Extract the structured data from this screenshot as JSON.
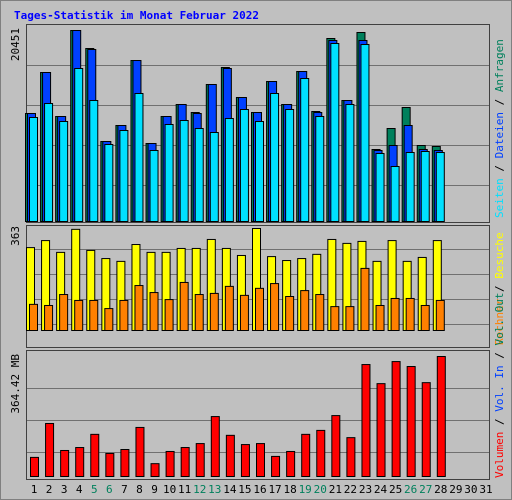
{
  "chart_data": {
    "type": "bar",
    "title": "Tages-Statistik im Monat Februar 2022",
    "legend_separator": " / ",
    "categories": [
      "1",
      "2",
      "3",
      "4",
      "5",
      "6",
      "7",
      "8",
      "9",
      "10",
      "11",
      "12",
      "13",
      "14",
      "15",
      "16",
      "17",
      "18",
      "19",
      "20",
      "21",
      "22",
      "23",
      "24",
      "25",
      "26",
      "27",
      "28",
      "29",
      "30",
      "31"
    ],
    "category_colors": [
      "#000000",
      "#000000",
      "#000000",
      "#000000",
      "#00805c",
      "#00805c",
      "#000000",
      "#000000",
      "#000000",
      "#000000",
      "#000000",
      "#00805c",
      "#00805c",
      "#000000",
      "#000000",
      "#000000",
      "#000000",
      "#000000",
      "#00805c",
      "#00805c",
      "#000000",
      "#000000",
      "#000000",
      "#000000",
      "#000000",
      "#00805c",
      "#00805c",
      "#000000",
      "#000000",
      "#000000",
      "#000000"
    ],
    "panels": [
      {
        "ylim": [
          0,
          20451
        ],
        "yticks": [
          20451
        ],
        "series": [
          {
            "name": "Anfragen",
            "color": "#00805c",
            "values": [
              11564,
              15954,
              11242,
              20451,
              18523,
              8566,
              10279,
              17238,
              8351,
              11242,
              12527,
              11671,
              14669,
              16489,
              13277,
              11671,
              14990,
              12527,
              16060,
              11778,
              19594,
              12955,
              20236,
              7709,
              9957,
              12206,
              8137,
              8030,
              null,
              null,
              null
            ]
          },
          {
            "name": "Dateien",
            "color": "#0040ff",
            "values": [
              11564,
              15954,
              11242,
              20451,
              18416,
              8566,
              10279,
              17238,
              8351,
              11242,
              12527,
              11564,
              14669,
              16382,
              13277,
              11671,
              14990,
              12527,
              16060,
              11671,
              19380,
              12955,
              19380,
              7602,
              8137,
              10279,
              7709,
              7602,
              null,
              null,
              null
            ]
          },
          {
            "name": "Seiten",
            "color": "#00e0ff",
            "values": [
              11135,
              12634,
              10707,
              16382,
              12955,
              8244,
              9743,
              13705,
              7602,
              10386,
              10814,
              9957,
              9529,
              11028,
              11992,
              10707,
              13705,
              11992,
              15311,
              11242,
              19059,
              12527,
              18951,
              7281,
              5889,
              7388,
              7495,
              7388,
              null,
              null,
              null
            ]
          }
        ]
      },
      {
        "ylim": [
          0,
          363
        ],
        "yticks": [
          363
        ],
        "series": [
          {
            "name": "Besuche",
            "color": "#ffff00",
            "values": [
              295,
              320,
              278,
              360,
              285,
              256,
              246,
              306,
              278,
              278,
              292,
              292,
              324,
              292,
              267,
              363,
              263,
              249,
              256,
              271,
              324,
              310,
              317,
              246,
              320,
              246,
              260,
              320,
              null,
              null,
              null
            ]
          },
          {
            "name": "Rechner",
            "color": "#ff8000",
            "values": [
              93,
              89,
              128,
              107,
              107,
              78,
              107,
              160,
              135,
              110,
              171,
              128,
              132,
              157,
              125,
              150,
              167,
              121,
              142,
              128,
              85,
              85,
              221,
              89,
              114,
              114,
              89,
              107,
              null,
              null,
              null
            ]
          }
        ]
      },
      {
        "ylim": [
          0,
          364.42
        ],
        "yticks": [
          {
            "value": 364.42,
            "label": "364.42 MB"
          }
        ],
        "series": [
          {
            "name": "Volumen",
            "color": "#ff0000",
            "values": [
              58,
              161,
              79,
              88,
              128,
              70,
              82,
              149,
              39,
              76,
              88,
              100,
              182,
              125,
              97,
              100,
              61,
              76,
              128,
              140,
              185,
              118,
              340,
              282,
              349,
              334,
              285,
              364.42,
              null,
              null,
              null
            ]
          }
        ],
        "legend_only": [
          {
            "name": "Vol. In",
            "color": "#0040ff"
          },
          {
            "name": "Vol. Out",
            "color": "#00805c"
          }
        ]
      }
    ]
  }
}
